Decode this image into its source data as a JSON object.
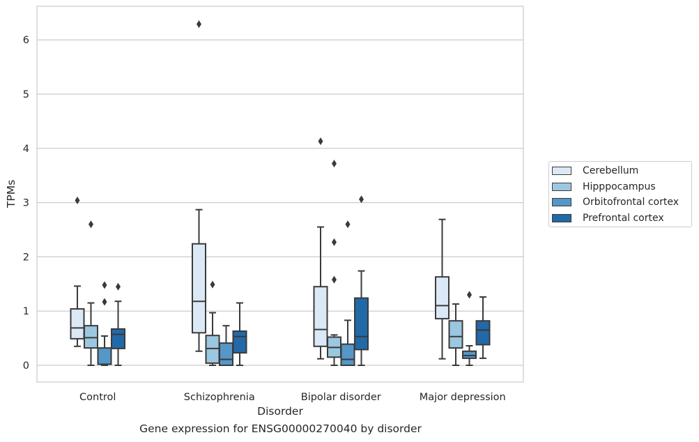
{
  "chart_data": {
    "type": "box",
    "xlabel": "Disorder",
    "ylabel": "TPMs",
    "ylim": [
      -0.3,
      6.6
    ],
    "yticks": [
      0,
      1,
      2,
      3,
      4,
      5,
      6
    ],
    "grid": "horizontal",
    "legend_placement": "right",
    "categories": [
      "Control",
      "Schizophrenia",
      "Bipolar disorder",
      "Major depression"
    ],
    "series": [
      {
        "name": "Cerebellum",
        "color": "#dbe9f6",
        "boxes": [
          {
            "whislo": 0.35,
            "q1": 0.49,
            "med": 0.69,
            "q3": 1.04,
            "whishi": 1.46,
            "fliers": [
              3.04
            ]
          },
          {
            "whislo": 0.26,
            "q1": 0.6,
            "med": 1.18,
            "q3": 2.24,
            "whishi": 2.87,
            "fliers": [
              6.29
            ]
          },
          {
            "whislo": 0.12,
            "q1": 0.35,
            "med": 0.66,
            "q3": 1.45,
            "whishi": 2.55,
            "fliers": [
              4.13
            ]
          },
          {
            "whislo": 0.12,
            "q1": 0.86,
            "med": 1.1,
            "q3": 1.63,
            "whishi": 2.69,
            "fliers": []
          }
        ]
      },
      {
        "name": "Hipppocampus",
        "color": "#9cc7e0",
        "boxes": [
          {
            "whislo": 0.0,
            "q1": 0.32,
            "med": 0.51,
            "q3": 0.73,
            "whishi": 1.15,
            "fliers": [
              2.6
            ]
          },
          {
            "whislo": 0.0,
            "q1": 0.04,
            "med": 0.31,
            "q3": 0.55,
            "whishi": 0.97,
            "fliers": [
              1.49
            ]
          },
          {
            "whislo": 0.0,
            "q1": 0.15,
            "med": 0.33,
            "q3": 0.52,
            "whishi": 0.56,
            "fliers": [
              1.58,
              2.27,
              3.72
            ]
          },
          {
            "whislo": 0.0,
            "q1": 0.32,
            "med": 0.53,
            "q3": 0.82,
            "whishi": 1.13,
            "fliers": []
          }
        ]
      },
      {
        "name": "Orbitofrontal cortex",
        "color": "#5597c8",
        "boxes": [
          {
            "whislo": 0.0,
            "q1": 0.02,
            "med": 0.02,
            "q3": 0.32,
            "whishi": 0.54,
            "fliers": [
              1.17,
              1.48
            ]
          },
          {
            "whislo": 0.0,
            "q1": 0.0,
            "med": 0.11,
            "q3": 0.41,
            "whishi": 0.73,
            "fliers": []
          },
          {
            "whislo": 0.0,
            "q1": 0.0,
            "med": 0.11,
            "q3": 0.39,
            "whishi": 0.83,
            "fliers": [
              2.6
            ]
          },
          {
            "whislo": 0.0,
            "q1": 0.13,
            "med": 0.18,
            "q3": 0.26,
            "whishi": 0.36,
            "fliers": [
              1.3
            ]
          }
        ]
      },
      {
        "name": "Prefrontal cortex",
        "color": "#2269a8",
        "boxes": [
          {
            "whislo": 0.0,
            "q1": 0.31,
            "med": 0.57,
            "q3": 0.67,
            "whishi": 1.18,
            "fliers": [
              1.45
            ]
          },
          {
            "whislo": 0.0,
            "q1": 0.23,
            "med": 0.53,
            "q3": 0.63,
            "whishi": 1.15,
            "fliers": []
          },
          {
            "whislo": 0.0,
            "q1": 0.29,
            "med": 0.53,
            "q3": 1.24,
            "whishi": 1.74,
            "fliers": [
              3.06
            ]
          },
          {
            "whislo": 0.13,
            "q1": 0.38,
            "med": 0.65,
            "q3": 0.82,
            "whishi": 1.26,
            "fliers": []
          }
        ]
      }
    ]
  },
  "caption": "Gene expression for ENSG00000270040 by disorder"
}
